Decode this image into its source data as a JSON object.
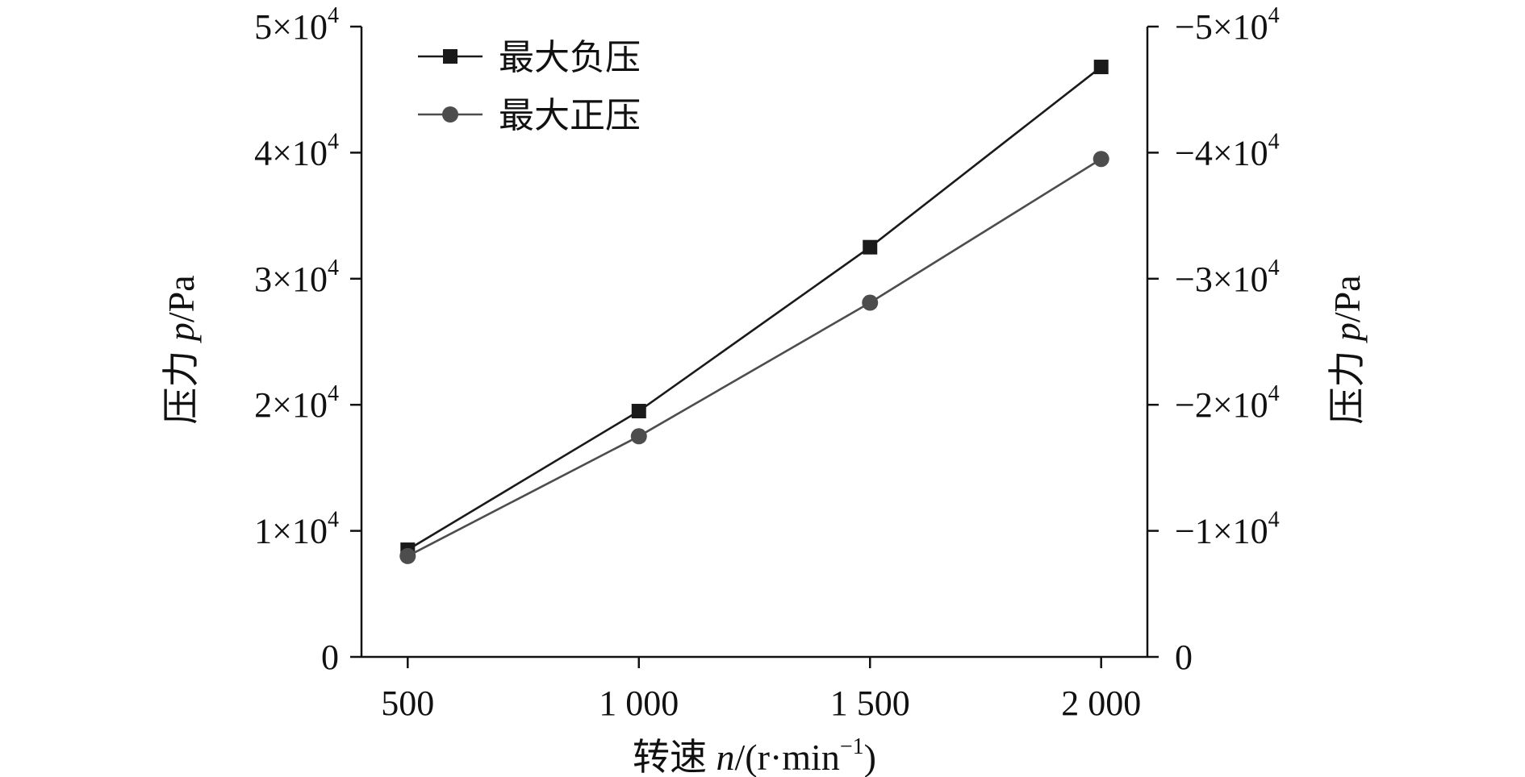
{
  "chart_data": {
    "type": "line",
    "x": [
      500,
      1000,
      1500,
      2000
    ],
    "x_tick_labels": [
      "500",
      "1 000",
      "1 500",
      "2 000"
    ],
    "xlim": [
      400,
      2100
    ],
    "ylim": [
      0,
      50000
    ],
    "y_tick_labels_left": [
      {
        "mantissa": "0",
        "exp": ""
      },
      {
        "mantissa": "1×10",
        "exp": "4"
      },
      {
        "mantissa": "2×10",
        "exp": "4"
      },
      {
        "mantissa": "3×10",
        "exp": "4"
      },
      {
        "mantissa": "4×10",
        "exp": "4"
      },
      {
        "mantissa": "5×10",
        "exp": "4"
      }
    ],
    "y_tick_labels_right": [
      {
        "mantissa": "0",
        "exp": ""
      },
      {
        "mantissa": "−1×10",
        "exp": "4"
      },
      {
        "mantissa": "−2×10",
        "exp": "4"
      },
      {
        "mantissa": "−3×10",
        "exp": "4"
      },
      {
        "mantissa": "−4×10",
        "exp": "4"
      },
      {
        "mantissa": "−5×10",
        "exp": "4"
      }
    ],
    "xlabel": {
      "main": "转速 ",
      "var": "n",
      "unit": "/(r·min",
      "sup": "−1",
      "close": ")"
    },
    "ylabel_left": {
      "main": "压力 ",
      "var": "p",
      "unit": "/Pa"
    },
    "ylabel_right": {
      "main": "压力 ",
      "var": "p",
      "unit": "/Pa"
    },
    "legend_position": "top-left",
    "grid": false,
    "series": [
      {
        "name": "最大负压",
        "marker": "square",
        "color": "#1a1a1a",
        "values": [
          8500,
          19500,
          32500,
          46800
        ]
      },
      {
        "name": "最大正压",
        "marker": "circle",
        "color": "#4d4d4d",
        "values": [
          8000,
          17500,
          28100,
          39500
        ]
      }
    ]
  }
}
